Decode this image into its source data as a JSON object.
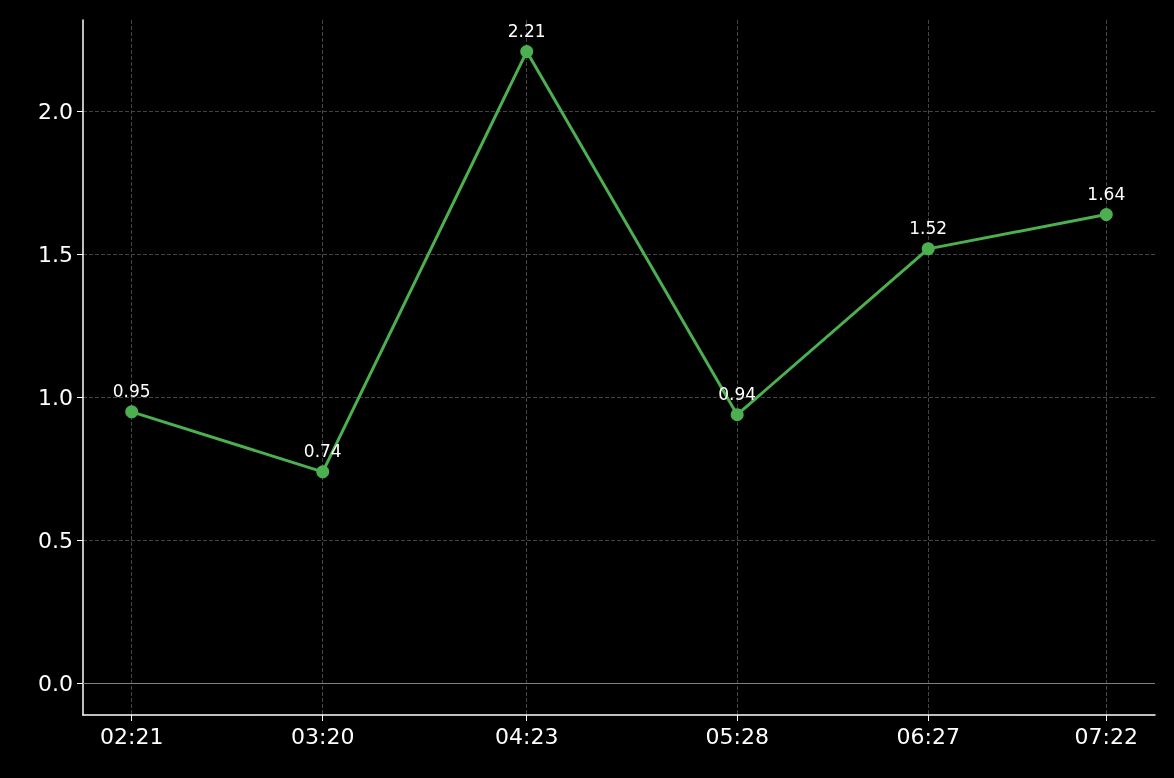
{
  "chart_data": {
    "type": "line",
    "x": [
      2.35,
      3.3333,
      4.3833,
      5.4667,
      6.45,
      7.3667
    ],
    "series": [
      {
        "color": "#4caf50",
        "values": [
          0.95,
          0.74,
          2.21,
          0.94,
          1.52,
          1.64
        ]
      }
    ],
    "xlim": [
      2.0992,
      7.6175
    ],
    "xticks": [
      {
        "value": 2.35,
        "label": "02:21"
      },
      {
        "value": 3.3333,
        "label": "03:20"
      },
      {
        "value": 4.3833,
        "label": "04:23"
      },
      {
        "value": 5.4667,
        "label": "05:28"
      },
      {
        "value": 6.45,
        "label": "06:27"
      },
      {
        "value": 7.3667,
        "label": "07:22"
      }
    ],
    "ylim": [
      -0.1105,
      2.3205
    ],
    "yticks": [
      {
        "value": 0,
        "label": "0.0"
      },
      0.5,
      {
        "value": 1,
        "label": "1.0"
      },
      1.5,
      {
        "value": 2,
        "label": "2.0"
      }
    ],
    "ref_lines": [
      {
        "axis": "y",
        "value": 0,
        "color": "#808080"
      }
    ],
    "grid": true,
    "marker": "circle",
    "line_style": "solid",
    "data_labels": true
  }
}
